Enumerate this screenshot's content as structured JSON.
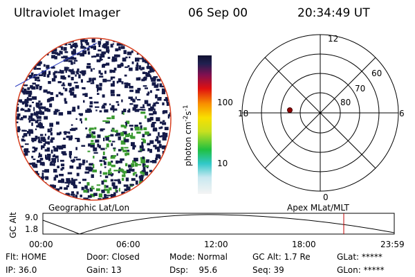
{
  "header": {
    "title": "Ultraviolet Imager",
    "date": "06 Sep 00",
    "time": "20:34:49 UT"
  },
  "colorbar": {
    "unit": "photon cm",
    "exp1": "-2",
    "unit2": "s",
    "exp2": "-1",
    "ticks": [
      "100",
      "10"
    ]
  },
  "polar": {
    "mlt_labels": {
      "top": "12",
      "left": "18",
      "right": "6",
      "bottom": "0"
    },
    "lat_labels": [
      "60",
      "70",
      "80"
    ]
  },
  "timeline": {
    "left_title": "Geographic Lat/Lon",
    "right_title": "Apex MLat/MLT",
    "y_label": "GC Alt",
    "y_ticks": [
      "9.0",
      "1.8"
    ],
    "x_ticks": [
      "00:00",
      "06:00",
      "12:00",
      "18:00",
      "23:59"
    ]
  },
  "status": {
    "rows": [
      [
        "Flt: HOME",
        "Door: Closed",
        "Mode: Normal",
        "GC Alt: 1.7 Re",
        "GLat: *****"
      ],
      [
        "IP: 36.0",
        "Gain: 13",
        "Dsp:    95.6",
        "Seq: 39",
        "GLon: *****"
      ]
    ]
  }
}
